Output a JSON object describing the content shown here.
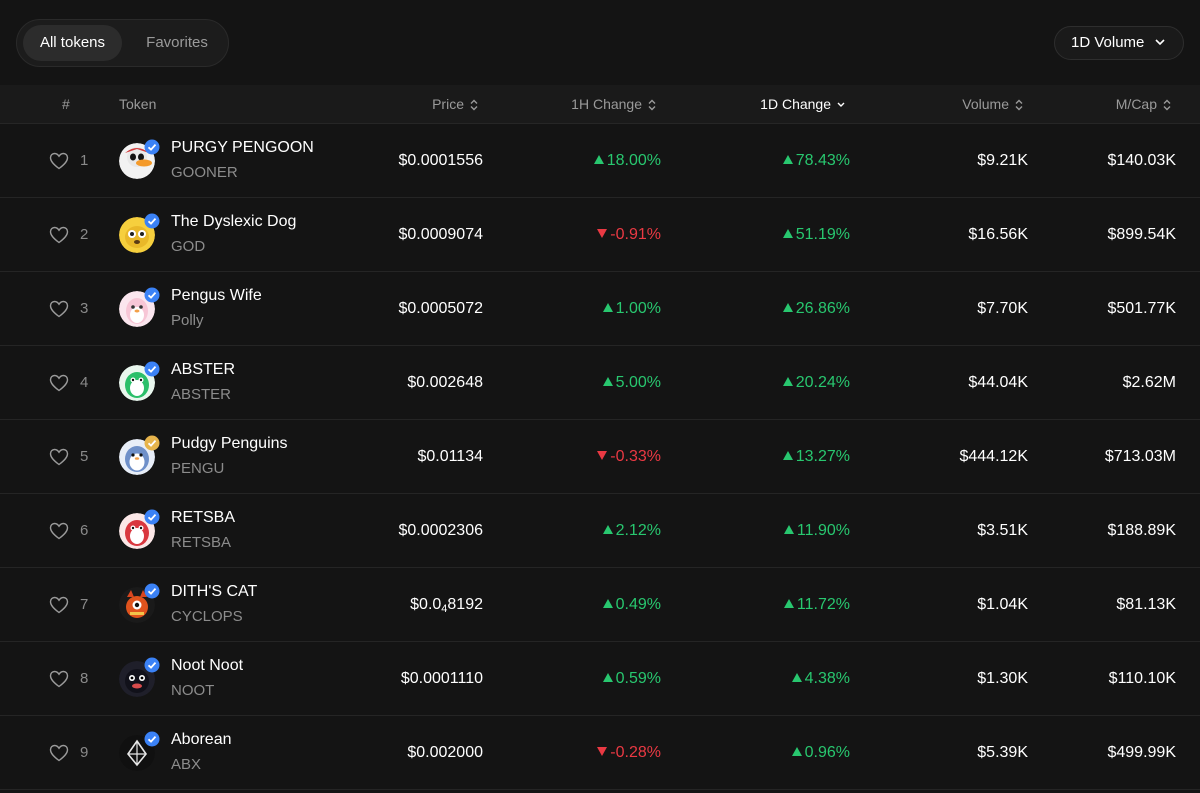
{
  "tabs": [
    {
      "label": "All tokens",
      "active": true
    },
    {
      "label": "Favorites",
      "active": false
    }
  ],
  "dropdown": {
    "label": "1D Volume",
    "icon": "chevron-down-icon"
  },
  "columns": {
    "rank": "#",
    "token": "Token",
    "price": "Price",
    "h1": "1H Change",
    "d1": "1D Change",
    "volume": "Volume",
    "mcap": "M/Cap"
  },
  "colors": {
    "up": "#28c76f",
    "down": "#ea3943",
    "verified_blue": "#3b82f6",
    "verified_gold": "#e6b44c"
  },
  "rows": [
    {
      "rank": "1",
      "name": "PURGY PENGOON",
      "symbol": "GOONER",
      "price": "$0.0001556",
      "h1": "18.00%",
      "h1_dir": "up",
      "d1": "78.43%",
      "d1_dir": "up",
      "volume": "$9.21K",
      "mcap": "$140.03K",
      "badge": "blue",
      "avatar": "penguin-duck-icon"
    },
    {
      "rank": "2",
      "name": "The Dyslexic Dog",
      "symbol": "GOD",
      "price": "$0.0009074",
      "h1": "-0.91%",
      "h1_dir": "down",
      "d1": "51.19%",
      "d1_dir": "up",
      "volume": "$16.56K",
      "mcap": "$899.54K",
      "badge": "blue",
      "avatar": "dog-icon"
    },
    {
      "rank": "3",
      "name": "Pengus Wife",
      "symbol": "Polly",
      "price": "$0.0005072",
      "h1": "1.00%",
      "h1_dir": "up",
      "d1": "26.86%",
      "d1_dir": "up",
      "volume": "$7.70K",
      "mcap": "$501.77K",
      "badge": "blue",
      "avatar": "pink-penguin-icon"
    },
    {
      "rank": "4",
      "name": "ABSTER",
      "symbol": "ABSTER",
      "price": "$0.002648",
      "h1": "5.00%",
      "h1_dir": "up",
      "d1": "20.24%",
      "d1_dir": "up",
      "volume": "$44.04K",
      "mcap": "$2.62M",
      "badge": "blue",
      "avatar": "green-penguin-icon"
    },
    {
      "rank": "5",
      "name": "Pudgy Penguins",
      "symbol": "PENGU",
      "price": "$0.01134",
      "h1": "-0.33%",
      "h1_dir": "down",
      "d1": "13.27%",
      "d1_dir": "up",
      "volume": "$444.12K",
      "mcap": "$713.03M",
      "badge": "gold",
      "avatar": "blue-penguin-icon"
    },
    {
      "rank": "6",
      "name": "RETSBA",
      "symbol": "RETSBA",
      "price": "$0.0002306",
      "h1": "2.12%",
      "h1_dir": "up",
      "d1": "11.90%",
      "d1_dir": "up",
      "volume": "$3.51K",
      "mcap": "$188.89K",
      "badge": "blue",
      "avatar": "red-penguin-icon"
    },
    {
      "rank": "7",
      "name": "DITH'S CAT",
      "symbol": "CYCLOPS",
      "price_main": "$0.0",
      "price_sub": "4",
      "price_tail": "8192",
      "h1": "0.49%",
      "h1_dir": "up",
      "d1": "11.72%",
      "d1_dir": "up",
      "volume": "$1.04K",
      "mcap": "$81.13K",
      "badge": "blue",
      "avatar": "cat-icon"
    },
    {
      "rank": "8",
      "name": "Noot Noot",
      "symbol": "NOOT",
      "price": "$0.0001110",
      "h1": "0.59%",
      "h1_dir": "up",
      "d1": "4.38%",
      "d1_dir": "up",
      "volume": "$1.30K",
      "mcap": "$110.10K",
      "badge": "blue",
      "avatar": "dark-penguin-icon"
    },
    {
      "rank": "9",
      "name": "Aborean",
      "symbol": "ABX",
      "price": "$0.002000",
      "h1": "-0.28%",
      "h1_dir": "down",
      "d1": "0.96%",
      "d1_dir": "up",
      "volume": "$5.39K",
      "mcap": "$499.99K",
      "badge": "blue",
      "avatar": "diamond-icon"
    }
  ]
}
